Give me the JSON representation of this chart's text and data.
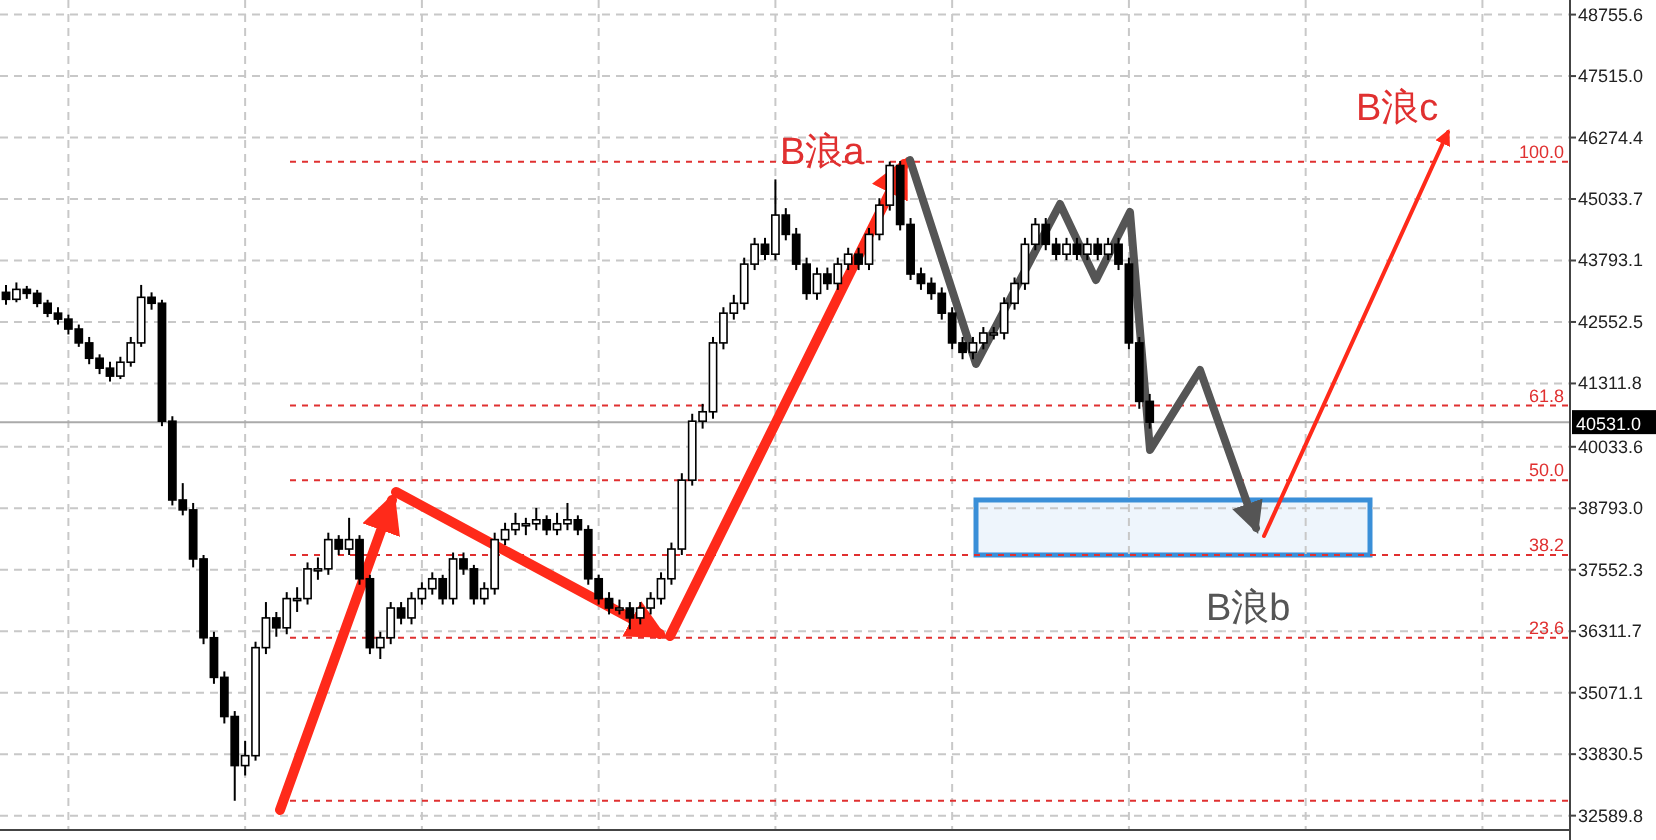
{
  "chart_data": {
    "type": "candlestick",
    "categories": [
      null,
      null,
      null,
      null,
      null,
      null,
      null,
      null,
      null,
      null,
      null,
      null,
      null,
      null,
      null,
      null,
      null,
      null,
      null,
      null,
      null,
      null,
      null,
      null,
      null,
      null,
      null,
      null,
      null,
      null,
      null,
      null,
      null,
      null,
      null,
      null,
      null,
      null,
      null,
      null,
      null,
      null,
      null,
      null,
      null,
      null,
      null,
      null,
      null,
      null,
      null,
      null,
      null,
      null,
      null,
      null,
      null,
      null,
      null,
      null,
      null,
      null,
      null,
      null,
      null,
      null,
      null,
      null,
      null,
      null,
      null,
      null,
      null,
      null,
      null,
      null,
      null,
      null,
      null,
      null,
      null,
      null,
      null,
      null,
      null,
      null,
      null,
      null,
      null,
      null,
      null,
      null,
      null,
      null,
      null,
      null,
      null,
      null,
      null,
      null,
      null,
      null,
      null,
      null,
      null,
      null,
      null,
      null,
      null,
      null,
      null,
      null,
      null,
      null,
      null,
      null,
      null,
      null,
      null,
      null,
      null,
      null,
      null,
      null,
      null,
      null,
      null,
      null,
      null,
      null,
      null,
      null,
      null,
      null,
      null,
      null,
      null,
      null,
      null,
      null,
      null,
      null,
      null,
      null,
      null,
      null,
      null,
      null,
      null,
      null,
      null
    ],
    "ohlc": [
      [
        43150,
        43300,
        42900,
        43010
      ],
      [
        43010,
        43350,
        42950,
        43210
      ],
      [
        43210,
        43280,
        43020,
        43130
      ],
      [
        43130,
        43200,
        42850,
        42930
      ],
      [
        42930,
        43000,
        42650,
        42730
      ],
      [
        42730,
        42850,
        42500,
        42610
      ],
      [
        42610,
        42700,
        42300,
        42410
      ],
      [
        42410,
        42500,
        42050,
        42130
      ],
      [
        42130,
        42250,
        41700,
        41820
      ],
      [
        41820,
        41900,
        41500,
        41620
      ],
      [
        41620,
        41750,
        41350,
        41460
      ],
      [
        41460,
        41850,
        41400,
        41740
      ],
      [
        41740,
        42250,
        41650,
        42130
      ],
      [
        42130,
        43300,
        42050,
        43050
      ],
      [
        43050,
        43150,
        42800,
        42930
      ],
      [
        42930,
        43000,
        40450,
        40550
      ],
      [
        40550,
        40650,
        38850,
        38960
      ],
      [
        38960,
        39300,
        38650,
        38760
      ],
      [
        38760,
        38900,
        37600,
        37770
      ],
      [
        37770,
        37850,
        36050,
        36180
      ],
      [
        36180,
        36300,
        35250,
        35380
      ],
      [
        35380,
        35500,
        34450,
        34590
      ],
      [
        34590,
        34700,
        32890,
        33600
      ],
      [
        33600,
        34100,
        33400,
        33800
      ],
      [
        33800,
        36100,
        33700,
        35980
      ],
      [
        35980,
        36900,
        35850,
        36580
      ],
      [
        36580,
        36700,
        36200,
        36380
      ],
      [
        36380,
        37100,
        36250,
        36970
      ],
      [
        36970,
        37200,
        36700,
        36970
      ],
      [
        36970,
        37700,
        36850,
        37570
      ],
      [
        37570,
        37800,
        37350,
        37570
      ],
      [
        37570,
        38300,
        37450,
        38160
      ],
      [
        38160,
        38250,
        37850,
        37970
      ],
      [
        37970,
        38600,
        37850,
        38160
      ],
      [
        38160,
        38250,
        37250,
        37370
      ],
      [
        37370,
        37450,
        35850,
        35980
      ],
      [
        35980,
        36300,
        35750,
        36180
      ],
      [
        36180,
        36900,
        36050,
        36780
      ],
      [
        36780,
        36900,
        36450,
        36580
      ],
      [
        36580,
        37100,
        36450,
        36970
      ],
      [
        36970,
        37300,
        36850,
        37170
      ],
      [
        37170,
        37500,
        37050,
        37370
      ],
      [
        37370,
        37450,
        36850,
        36970
      ],
      [
        36970,
        37900,
        36850,
        37770
      ],
      [
        37770,
        37900,
        37450,
        37570
      ],
      [
        37570,
        37650,
        36850,
        36970
      ],
      [
        36970,
        37300,
        36850,
        37170
      ],
      [
        37170,
        38300,
        37050,
        38160
      ],
      [
        38160,
        38500,
        38050,
        38360
      ],
      [
        38360,
        38700,
        38250,
        38480
      ],
      [
        38480,
        38600,
        38250,
        38480
      ],
      [
        38480,
        38800,
        38350,
        38560
      ],
      [
        38560,
        38650,
        38250,
        38360
      ],
      [
        38360,
        38700,
        38250,
        38480
      ],
      [
        38480,
        38900,
        38350,
        38560
      ],
      [
        38560,
        38650,
        38250,
        38360
      ],
      [
        38360,
        38450,
        37250,
        37370
      ],
      [
        37370,
        37450,
        36850,
        36970
      ],
      [
        36970,
        37100,
        36650,
        36780
      ],
      [
        36780,
        36950,
        36650,
        36780
      ],
      [
        36780,
        36900,
        36350,
        36580
      ],
      [
        36580,
        36900,
        36450,
        36780
      ],
      [
        36780,
        37100,
        36650,
        36970
      ],
      [
        36970,
        37500,
        36850,
        37370
      ],
      [
        37370,
        38100,
        37250,
        37970
      ],
      [
        37970,
        39500,
        37850,
        39360
      ],
      [
        39360,
        40700,
        39250,
        40550
      ],
      [
        40550,
        40900,
        40400,
        40740
      ],
      [
        40740,
        42250,
        40600,
        42130
      ],
      [
        42130,
        42850,
        42000,
        42730
      ],
      [
        42730,
        43100,
        42600,
        42930
      ],
      [
        42930,
        43850,
        42800,
        43720
      ],
      [
        43720,
        44250,
        43600,
        44120
      ],
      [
        44120,
        44250,
        43800,
        43920
      ],
      [
        43920,
        45430,
        43800,
        44710
      ],
      [
        44710,
        44850,
        44200,
        44320
      ],
      [
        44320,
        44450,
        43600,
        43720
      ],
      [
        43720,
        43850,
        43000,
        43130
      ],
      [
        43130,
        43650,
        43000,
        43520
      ],
      [
        43520,
        43650,
        43200,
        43330
      ],
      [
        43330,
        43850,
        43200,
        43720
      ],
      [
        43720,
        44050,
        43600,
        43920
      ],
      [
        43920,
        44050,
        43600,
        43720
      ],
      [
        43720,
        44450,
        43600,
        44320
      ],
      [
        44320,
        45050,
        44200,
        44910
      ],
      [
        44910,
        45790,
        44800,
        45710
      ],
      [
        45710,
        45800,
        44400,
        44520
      ],
      [
        44520,
        44650,
        43400,
        43520
      ],
      [
        43520,
        43650,
        43200,
        43330
      ],
      [
        43330,
        43450,
        43000,
        43130
      ],
      [
        43130,
        43250,
        42600,
        42730
      ],
      [
        42730,
        42850,
        42000,
        42130
      ],
      [
        42130,
        42250,
        41800,
        41940
      ],
      [
        41940,
        42250,
        41800,
        42130
      ],
      [
        42130,
        42450,
        42000,
        42330
      ],
      [
        42330,
        42450,
        42200,
        42330
      ],
      [
        42330,
        43050,
        42200,
        42930
      ],
      [
        42930,
        43450,
        42800,
        43330
      ],
      [
        43330,
        44250,
        43200,
        44120
      ],
      [
        44120,
        44650,
        44000,
        44520
      ],
      [
        44520,
        44650,
        44000,
        44120
      ],
      [
        44120,
        44250,
        43800,
        43920
      ],
      [
        43920,
        44250,
        43800,
        44120
      ],
      [
        44120,
        44250,
        43800,
        43920
      ],
      [
        43920,
        44250,
        43800,
        44120
      ],
      [
        44120,
        44250,
        43800,
        43920
      ],
      [
        43920,
        44250,
        43800,
        44120
      ],
      [
        44120,
        44250,
        43600,
        43720
      ],
      [
        43720,
        43850,
        42000,
        42130
      ],
      [
        42130,
        42250,
        40800,
        40950
      ],
      [
        40950,
        41100,
        40400,
        40530
      ],
      null,
      null,
      null,
      null,
      null,
      null,
      null,
      null,
      null,
      null,
      null,
      null,
      null,
      null,
      null,
      null,
      null,
      null,
      null,
      null,
      null,
      null,
      null,
      null,
      null,
      null,
      null,
      null,
      null,
      null,
      null,
      null,
      null,
      null,
      null,
      null,
      null,
      null,
      null,
      null
    ],
    "ylim": [
      32300,
      49050
    ],
    "yticks": [
      {
        "value": 48755.6,
        "label": "48755.6"
      },
      {
        "value": 47515,
        "label": "47515.0"
      },
      {
        "value": 46274.4,
        "label": "46274.4"
      },
      {
        "value": 45033.7,
        "label": "45033.7"
      },
      {
        "value": 43793.1,
        "label": "43793.1"
      },
      {
        "value": 42552.5,
        "label": "42552.5"
      },
      {
        "value": 41311.8,
        "label": "41311.8"
      },
      {
        "value": 40033.6,
        "label": "40033.6"
      },
      {
        "value": 38793,
        "label": "38793.0"
      },
      {
        "value": 37552.3,
        "label": "37552.3"
      },
      {
        "value": 36311.7,
        "label": "36311.7"
      },
      {
        "value": 35071.1,
        "label": "35071.1"
      },
      {
        "value": 33830.5,
        "label": "33830.5"
      },
      {
        "value": 32589.8,
        "label": "32589.8"
      }
    ],
    "grid": true,
    "ref_lines": [
      {
        "axis": "y",
        "value": 45788,
        "color": "#e03030",
        "line_style": "dashed"
      },
      {
        "axis": "y",
        "value": 40865,
        "color": "#e03030",
        "line_style": "dashed"
      },
      {
        "axis": "y",
        "value": 39357,
        "color": "#e03030",
        "line_style": "dashed"
      },
      {
        "axis": "y",
        "value": 37848,
        "color": "#e03030",
        "line_style": "dashed"
      },
      {
        "axis": "y",
        "value": 36180,
        "color": "#e03030",
        "line_style": "dashed"
      },
      {
        "axis": "y",
        "value": 32890,
        "color": "#e03030",
        "line_style": "dashed"
      },
      {
        "axis": "y",
        "value": 40531.0,
        "label": "40531.0",
        "color": "#aaaaaa",
        "line_style": "solid"
      }
    ],
    "bands": [
      {
        "axis": "y",
        "from": 37850,
        "to": 38960,
        "color": "#3a8fd8"
      }
    ],
    "annotations": [
      "B浪a",
      "B浪b",
      "B浪c",
      {
        "text": "100.0",
        "y": 45788
      },
      {
        "text": "61.8",
        "y": 40865
      },
      {
        "text": "50.0",
        "y": 39357
      },
      {
        "text": "38.2",
        "y": 37848
      },
      {
        "text": "23.6",
        "y": 36180
      }
    ]
  }
}
